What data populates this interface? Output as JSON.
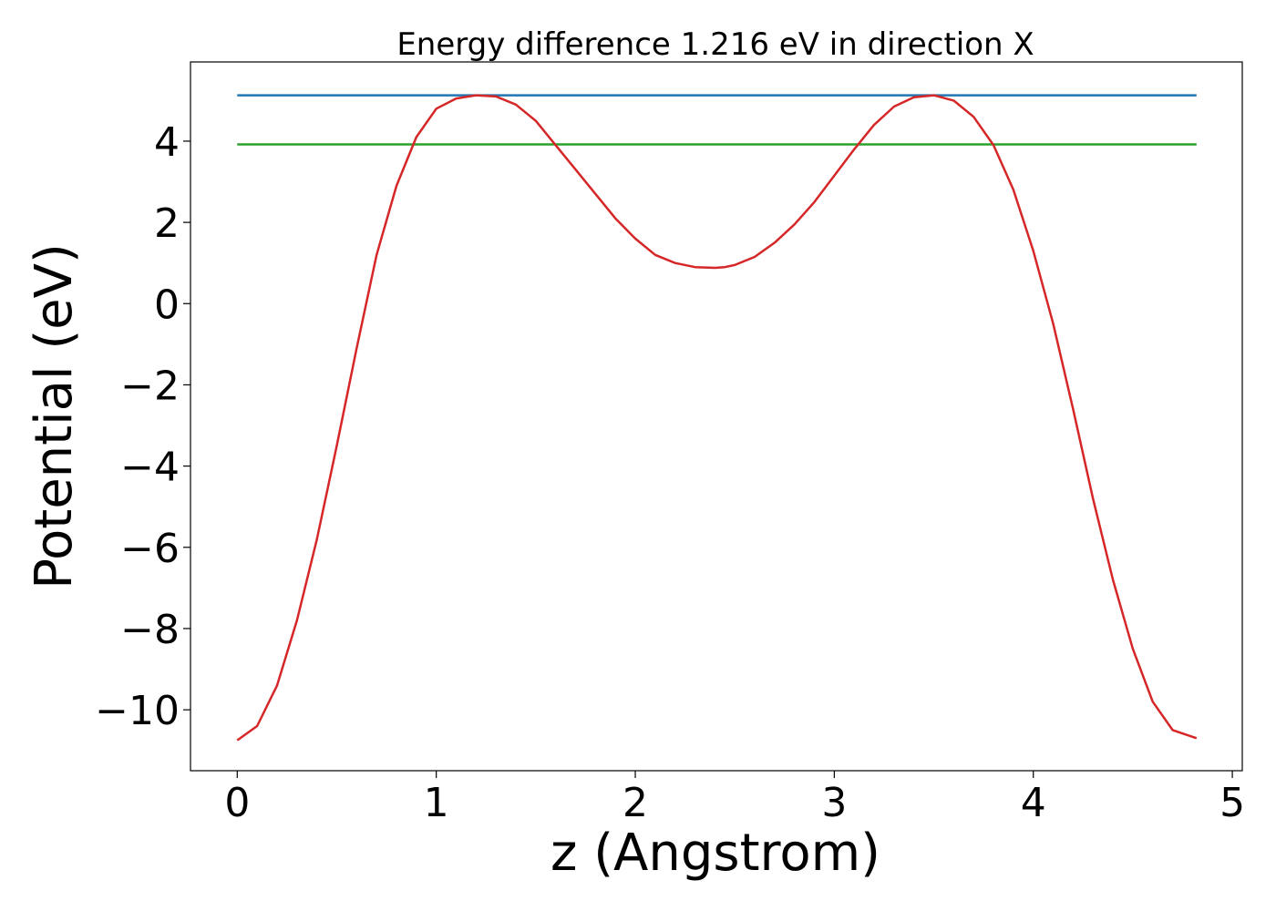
{
  "chart_data": {
    "type": "line",
    "title": "Energy difference 1.216 eV in direction X",
    "xlabel": "z (Angstrom)",
    "ylabel": "Potential (eV)",
    "xlim": [
      -0.235,
      5.05
    ],
    "ylim": [
      -11.5,
      5.95
    ],
    "xticks": [
      0,
      1,
      2,
      3,
      4,
      5
    ],
    "xtick_labels": [
      "0",
      "1",
      "2",
      "3",
      "4",
      "5"
    ],
    "yticks": [
      -10,
      -8,
      -6,
      -4,
      -2,
      0,
      2,
      4
    ],
    "ytick_labels": [
      "−10",
      "−8",
      "−6",
      "−4",
      "−2",
      "0",
      "2",
      "4"
    ],
    "grid": false,
    "legend": "none",
    "series": [
      {
        "color": "#1f77b4",
        "x": [
          0,
          4.82
        ],
        "y": [
          5.13,
          5.13
        ]
      },
      {
        "color": "#2ca02c",
        "x": [
          0,
          4.82
        ],
        "y": [
          3.92,
          3.92
        ]
      },
      {
        "color": "#d62728",
        "x": [
          0,
          0.1,
          0.2,
          0.3,
          0.4,
          0.5,
          0.6,
          0.7,
          0.8,
          0.9,
          1.0,
          1.1,
          1.2,
          1.3,
          1.4,
          1.5,
          1.6,
          1.7,
          1.8,
          1.9,
          2.0,
          2.1,
          2.2,
          2.3,
          2.4,
          2.45,
          2.5,
          2.6,
          2.7,
          2.8,
          2.9,
          3.0,
          3.1,
          3.2,
          3.3,
          3.4,
          3.5,
          3.6,
          3.7,
          3.8,
          3.9,
          4.0,
          4.1,
          4.2,
          4.3,
          4.4,
          4.5,
          4.6,
          4.7,
          4.82
        ],
        "y": [
          -10.75,
          -10.4,
          -9.4,
          -7.8,
          -5.8,
          -3.5,
          -1.1,
          1.2,
          2.9,
          4.1,
          4.8,
          5.05,
          5.13,
          5.1,
          4.9,
          4.5,
          3.9,
          3.3,
          2.7,
          2.1,
          1.6,
          1.2,
          1.0,
          0.9,
          0.88,
          0.9,
          0.95,
          1.15,
          1.5,
          1.95,
          2.5,
          3.15,
          3.8,
          4.4,
          4.85,
          5.08,
          5.13,
          5.0,
          4.6,
          3.9,
          2.8,
          1.3,
          -0.5,
          -2.6,
          -4.8,
          -6.8,
          -8.5,
          -9.8,
          -10.5,
          -10.7
        ]
      }
    ]
  }
}
